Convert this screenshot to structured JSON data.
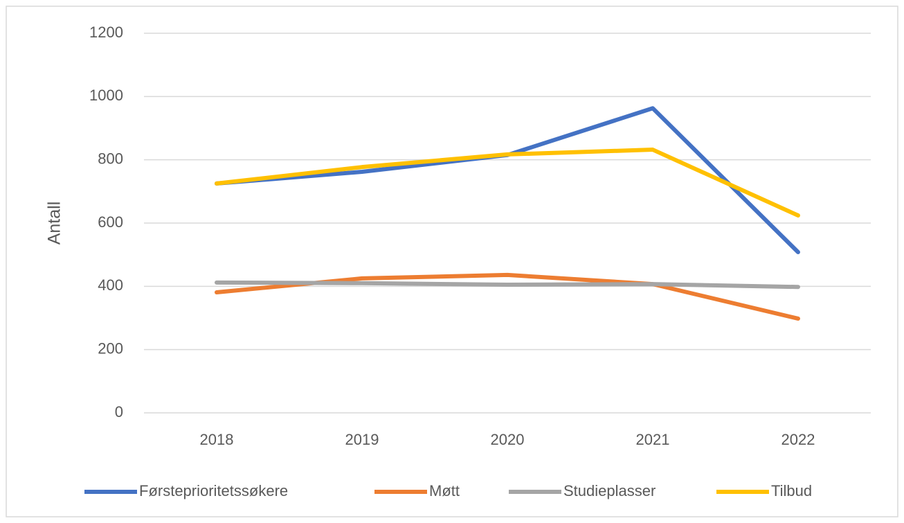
{
  "chart_data": {
    "type": "line",
    "y_label": "Antall",
    "categories": [
      "2018",
      "2019",
      "2020",
      "2021",
      "2022"
    ],
    "series": [
      {
        "name": "Førsteprioritetssøkere",
        "color": "#4472c4",
        "values": [
          725,
          762,
          815,
          963,
          508
        ]
      },
      {
        "name": "Møtt",
        "color": "#ed7d31",
        "values": [
          381,
          425,
          436,
          407,
          298
        ]
      },
      {
        "name": "Studieplasser",
        "color": "#a5a5a5",
        "values": [
          412,
          410,
          405,
          407,
          398
        ]
      },
      {
        "name": "Tilbud",
        "color": "#ffc000",
        "values": [
          725,
          777,
          817,
          832,
          624
        ]
      }
    ],
    "ylim": [
      0,
      1200
    ],
    "yticks": [
      0,
      200,
      400,
      600,
      800,
      1000,
      1200
    ],
    "grid": true,
    "legend": "bottom"
  }
}
